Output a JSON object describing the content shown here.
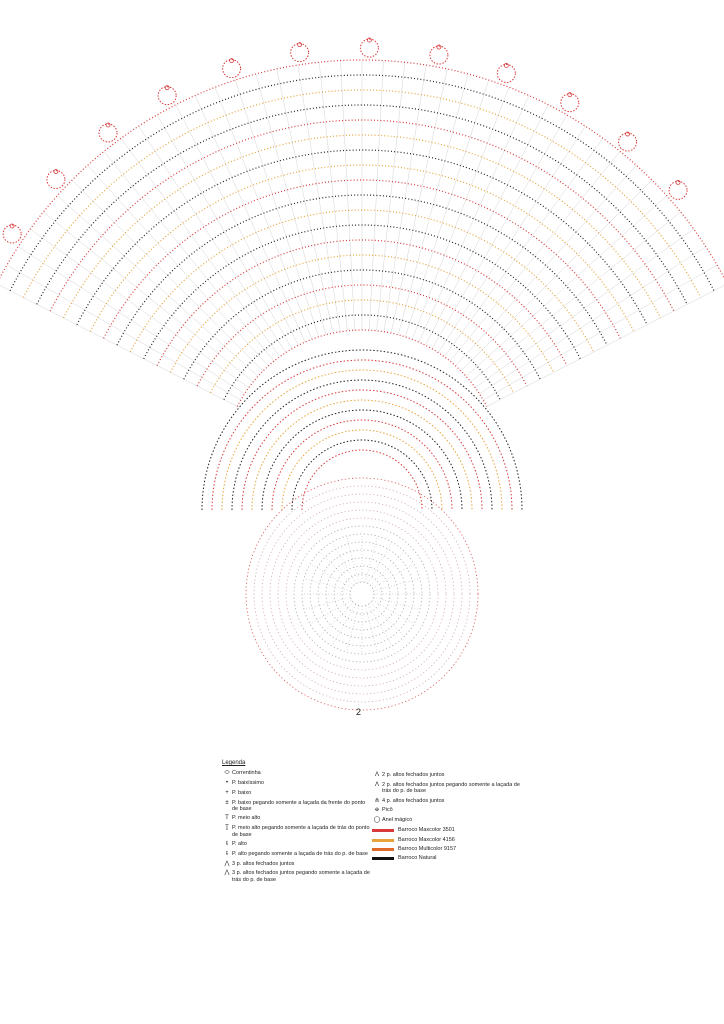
{
  "page_number": "2",
  "legend": {
    "title": "Legenda",
    "left_items": [
      {
        "icon": "chain-stitch-icon",
        "glyph": "⬭",
        "text": "Correntinha"
      },
      {
        "icon": "slip-stitch-icon",
        "glyph": "•",
        "text": "P. baixíssimo"
      },
      {
        "icon": "single-crochet-icon",
        "glyph": "+",
        "text": "P. baixo"
      },
      {
        "icon": "front-loop-single-crochet-icon",
        "glyph": "±",
        "text": "P. baixo pegando somente a laçada da frente do ponto de base"
      },
      {
        "icon": "half-double-crochet-icon",
        "glyph": "T",
        "text": "P. meio alto"
      },
      {
        "icon": "back-loop-half-double-crochet-icon",
        "glyph": "Ṯ",
        "text": "P. meio alto pegando somente a laçada de trás do ponto de base"
      },
      {
        "icon": "double-crochet-icon",
        "glyph": "ŧ",
        "text": "P. alto"
      },
      {
        "icon": "back-loop-double-crochet-icon",
        "glyph": "ŧ",
        "text": "P. alto pegando somente a laçada de trás do p. de base"
      },
      {
        "icon": "dc3tog-icon",
        "glyph": "⋀",
        "text": "3 p. altos fechados juntos"
      },
      {
        "icon": "back-loop-dc3tog-icon",
        "glyph": "⋀",
        "text": "3 p. altos fechados juntos pegando somente a laçada de trás do p. de base"
      }
    ],
    "right_items": [
      {
        "icon": "dc2tog-icon",
        "glyph": "Λ",
        "text": "2 p. altos fechados juntos"
      },
      {
        "icon": "back-loop-dc2tog-icon",
        "glyph": "Λ",
        "text": "2 p. altos fechados juntos pegando somente a laçada de trás do p. de base"
      },
      {
        "icon": "dc4tog-icon",
        "glyph": "⋔",
        "text": "4 p. altos fechados juntos"
      },
      {
        "icon": "picot-icon",
        "glyph": "ꝋ",
        "text": "Picô"
      },
      {
        "icon": "magic-ring-icon",
        "glyph": "◯",
        "text": "Anel mágico"
      }
    ],
    "colors": [
      {
        "text": "Barroco Maxcolor 3501",
        "color": "#d8393b"
      },
      {
        "text": "Barroco Maxcolor 4156",
        "color": "#e8a43a"
      },
      {
        "text": "Barroco Multicolor 9157",
        "color": "#e06a2a"
      },
      {
        "text": "Barroco Natural",
        "color": "#111111"
      }
    ]
  },
  "palette": {
    "red": "#d8393b",
    "orange": "#e8a43a",
    "multi": "#e06a2a",
    "natural": "#222222",
    "grey": "#9aa0a0"
  }
}
